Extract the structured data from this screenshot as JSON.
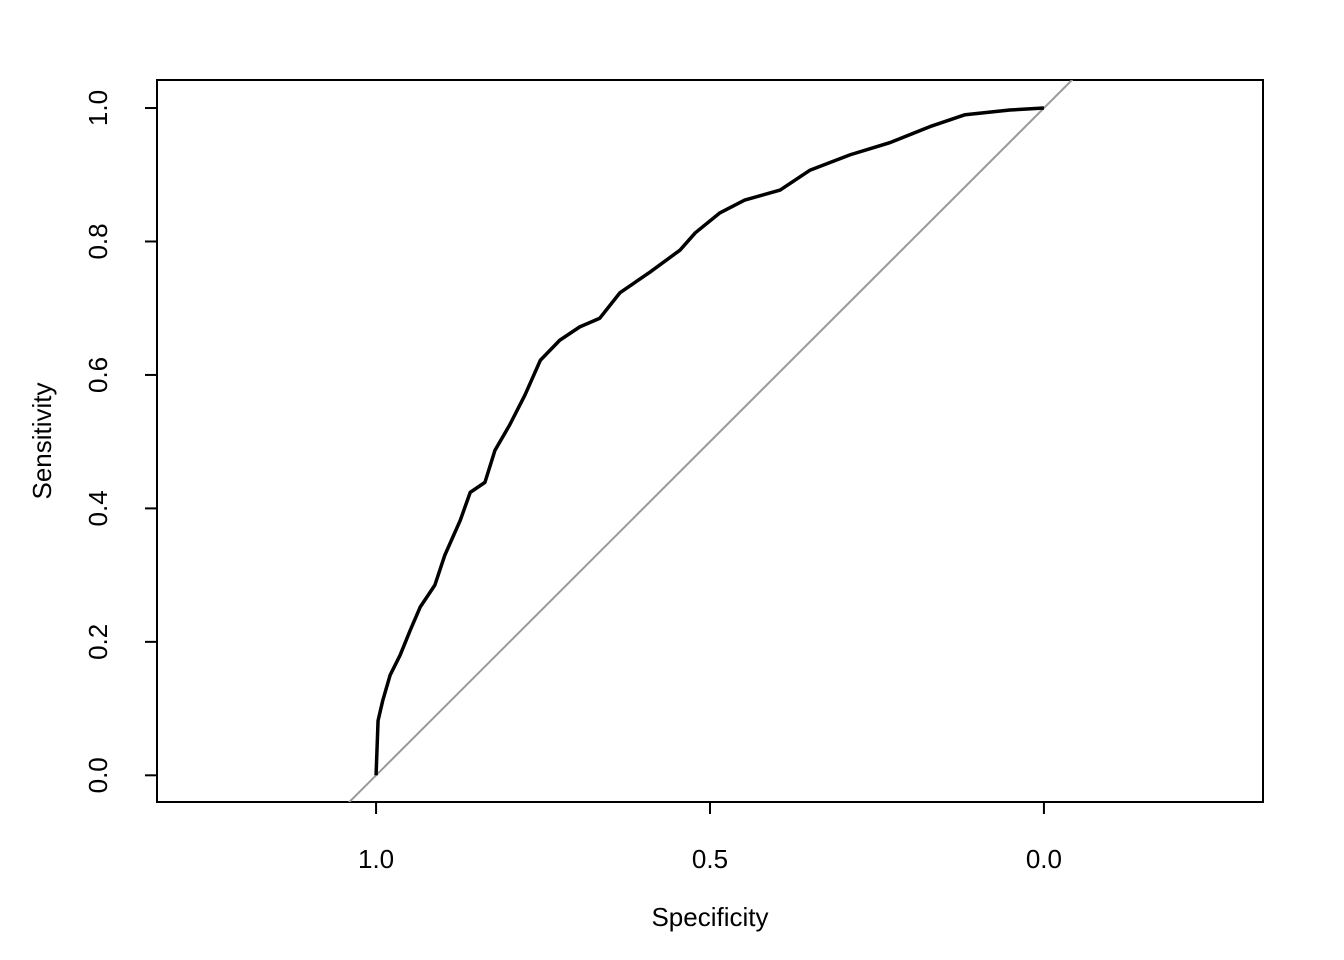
{
  "chart_data": {
    "type": "line",
    "xlabel": "Specificity",
    "ylabel": "Sensitivity",
    "x": [
      1.0,
      0.997,
      0.99,
      0.979,
      0.964,
      0.949,
      0.934,
      0.912,
      0.897,
      0.874,
      0.859,
      0.837,
      0.822,
      0.8,
      0.777,
      0.754,
      0.725,
      0.695,
      0.665,
      0.635,
      0.59,
      0.545,
      0.522,
      0.485,
      0.448,
      0.395,
      0.35,
      0.29,
      0.231,
      0.171,
      0.118,
      0.051,
      0.0
    ],
    "values": [
      0.0,
      0.082,
      0.112,
      0.15,
      0.18,
      0.217,
      0.252,
      0.285,
      0.33,
      0.382,
      0.424,
      0.439,
      0.487,
      0.525,
      0.57,
      0.622,
      0.652,
      0.672,
      0.685,
      0.723,
      0.754,
      0.787,
      0.813,
      0.843,
      0.862,
      0.877,
      0.907,
      0.93,
      0.948,
      0.972,
      0.99,
      0.997,
      1.0
    ],
    "color": "#000000",
    "xlim": [
      1.328,
      -0.328
    ],
    "xticks": [
      {
        "value": 1.0,
        "label": "1.0"
      },
      {
        "value": 0.5,
        "label": "0.5"
      },
      {
        "value": 0.0,
        "label": "0.0"
      }
    ],
    "ylim": [
      -0.04,
      1.042
    ],
    "yticks": [
      {
        "value": 0.0,
        "label": "0.0"
      },
      0.2,
      0.4,
      0.6,
      0.8,
      {
        "value": 1.0,
        "label": "1.0"
      }
    ]
  }
}
